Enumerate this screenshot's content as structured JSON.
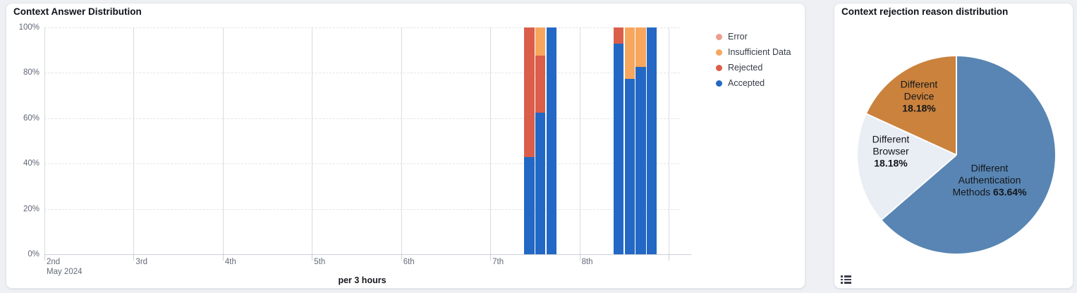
{
  "page": {
    "background": "#eef0f3"
  },
  "answer_panel": {
    "title": "Context Answer Distribution",
    "axis_title": "per 3 hours",
    "legend": [
      {
        "label": "Error",
        "color": "#eb9d8c"
      },
      {
        "label": "Insufficient Data",
        "color": "#f7a65e"
      },
      {
        "label": "Rejected",
        "color": "#db5e4a"
      },
      {
        "label": "Accepted",
        "color": "#2368c4"
      }
    ],
    "y_ticks": [
      {
        "label": "100%",
        "value": 100
      },
      {
        "label": "80%",
        "value": 80
      },
      {
        "label": "60%",
        "value": 60
      },
      {
        "label": "40%",
        "value": 40
      },
      {
        "label": "20%",
        "value": 20
      },
      {
        "label": "0%",
        "value": 0
      }
    ],
    "x_ticks": [
      {
        "label": "2nd",
        "sub": "May 2024"
      },
      {
        "label": "3rd",
        "sub": ""
      },
      {
        "label": "4th",
        "sub": ""
      },
      {
        "label": "5th",
        "sub": ""
      },
      {
        "label": "6th",
        "sub": ""
      },
      {
        "label": "7th",
        "sub": ""
      },
      {
        "label": "8th",
        "sub": ""
      },
      {
        "label": "",
        "sub": ""
      }
    ]
  },
  "rejection_panel": {
    "title": "Context rejection reason distribution",
    "labels": [
      {
        "lines": [
          {
            "plain": "Different",
            "bold": ""
          },
          {
            "plain": "Device",
            "bold": ""
          },
          {
            "plain": "",
            "bold": "18.18%"
          }
        ]
      },
      {
        "lines": [
          {
            "plain": "Different",
            "bold": ""
          },
          {
            "plain": "Browser",
            "bold": ""
          },
          {
            "plain": "",
            "bold": "18.18%"
          }
        ]
      },
      {
        "lines": [
          {
            "plain": "Different",
            "bold": ""
          },
          {
            "plain": "Authentication",
            "bold": ""
          },
          {
            "plain": "Methods ",
            "bold": "63.64%"
          }
        ]
      }
    ],
    "icons": {
      "legend_toggle": "list-icon"
    }
  },
  "chart_data": [
    {
      "type": "bar",
      "title": "Context Answer Distribution",
      "stacked": true,
      "unit": "percent",
      "xlabel": "per 3 hours",
      "ylabel": "",
      "ylim": [
        0,
        100
      ],
      "y_ticks": [
        0,
        20,
        40,
        60,
        80,
        100
      ],
      "x_axis_day_labels": [
        "2nd",
        "3rd",
        "4th",
        "5th",
        "6th",
        "7th",
        "8th"
      ],
      "x_axis_context": "May 2024",
      "grid": true,
      "legend_position": "right",
      "legend_order_top_to_bottom": [
        "Error",
        "Insufficient Data",
        "Rejected",
        "Accepted"
      ],
      "categories": [
        "May 7 09:00",
        "May 7 12:00",
        "May 7 15:00",
        "May 8 09:00",
        "May 8 12:00",
        "May 8 15:00",
        "May 8 18:00"
      ],
      "series": [
        {
          "name": "Accepted",
          "color": "#2368c4",
          "values": [
            42.9,
            62.5,
            100,
            92.9,
            77.3,
            82.7,
            100
          ]
        },
        {
          "name": "Rejected",
          "color": "#db5e4a",
          "values": [
            57.1,
            25,
            0,
            7.1,
            0,
            0,
            0
          ]
        },
        {
          "name": "Insufficient Data",
          "color": "#f7a65e",
          "values": [
            0,
            12.5,
            0,
            0,
            22.7,
            17.3,
            0
          ]
        },
        {
          "name": "Error",
          "color": "#eb9d8c",
          "values": [
            0,
            0,
            0,
            0,
            0,
            0,
            0
          ]
        }
      ]
    },
    {
      "type": "pie",
      "title": "Context rejection reason distribution",
      "start_angle_deg": 0,
      "direction": "clockwise",
      "slices": [
        {
          "label": "Different Authentication Methods",
          "pct": 63.64,
          "color": "#5885b3"
        },
        {
          "label": "Different Browser",
          "pct": 18.18,
          "color": "#e9edf4"
        },
        {
          "label": "Different Device",
          "pct": 18.18,
          "color": "#cb823d"
        }
      ]
    }
  ]
}
